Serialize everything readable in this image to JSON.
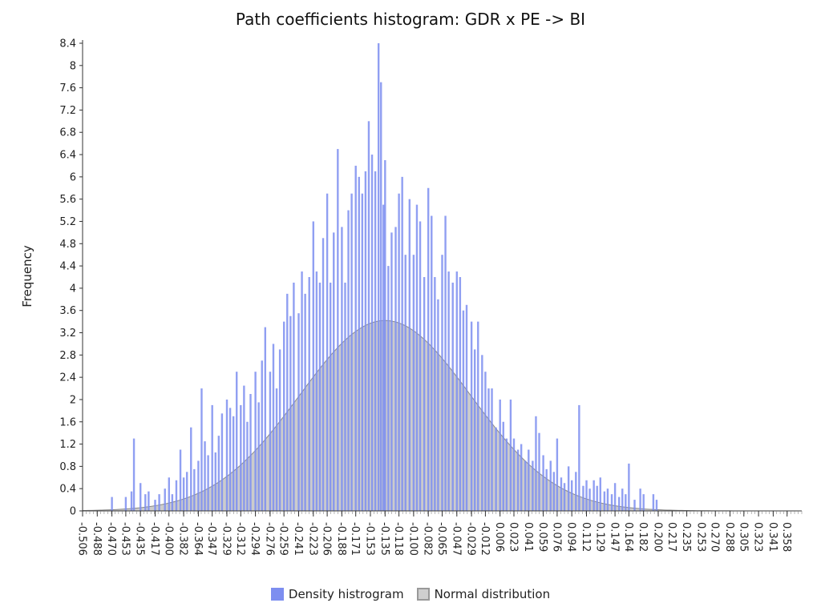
{
  "chart_data": {
    "type": "histogram",
    "title": "Path coefficients histogram: GDR x PE -> BI",
    "ylabel": "Frequency",
    "xlabel": "",
    "xlim": [
      -0.506,
      0.376
    ],
    "ylim": [
      0,
      8.4
    ],
    "y_ticks": [
      "0",
      "0.4",
      "0.8",
      "1.2",
      "1.6",
      "2",
      "2.4",
      "2.8",
      "3.2",
      "3.6",
      "4",
      "4.4",
      "4.8",
      "5.2",
      "5.6",
      "6",
      "6.4",
      "6.8",
      "7.2",
      "7.6",
      "8",
      "8.4"
    ],
    "x_ticks": [
      "-0.506",
      "-0.488",
      "-0.470",
      "-0.453",
      "-0.435",
      "-0.417",
      "-0.400",
      "-0.382",
      "-0.364",
      "-0.347",
      "-0.329",
      "-0.312",
      "-0.294",
      "-0.276",
      "-0.259",
      "-0.241",
      "-0.223",
      "-0.206",
      "-0.188",
      "-0.171",
      "-0.153",
      "-0.135",
      "-0.118",
      "-0.100",
      "-0.082",
      "-0.065",
      "-0.047",
      "-0.029",
      "-0.012",
      "0.006",
      "0.023",
      "0.041",
      "0.059",
      "0.076",
      "0.094",
      "0.112",
      "0.129",
      "0.147",
      "0.164",
      "0.182",
      "0.200",
      "0.217",
      "0.235",
      "0.253",
      "0.270",
      "0.288",
      "0.305",
      "0.323",
      "0.341",
      "0.358"
    ],
    "grid": false,
    "legend_position": "bottom",
    "series": [
      {
        "name": "Density histrogram",
        "kind": "bars",
        "color": "#7d8ef0",
        "x": [
          -0.47,
          -0.453,
          -0.446,
          -0.443,
          -0.435,
          -0.429,
          -0.425,
          -0.417,
          -0.412,
          -0.405,
          -0.4,
          -0.396,
          -0.391,
          -0.386,
          -0.382,
          -0.378,
          -0.373,
          -0.369,
          -0.364,
          -0.36,
          -0.356,
          -0.352,
          -0.347,
          -0.343,
          -0.339,
          -0.335,
          -0.329,
          -0.325,
          -0.321,
          -0.317,
          -0.312,
          -0.308,
          -0.304,
          -0.3,
          -0.294,
          -0.29,
          -0.286,
          -0.282,
          -0.276,
          -0.272,
          -0.268,
          -0.264,
          -0.259,
          -0.255,
          -0.251,
          -0.247,
          -0.241,
          -0.237,
          -0.233,
          -0.228,
          -0.223,
          -0.219,
          -0.215,
          -0.211,
          -0.206,
          -0.202,
          -0.198,
          -0.193,
          -0.188,
          -0.184,
          -0.18,
          -0.176,
          -0.171,
          -0.167,
          -0.163,
          -0.159,
          -0.155,
          -0.151,
          -0.147,
          -0.143,
          -0.14,
          -0.137,
          -0.135,
          -0.131,
          -0.127,
          -0.122,
          -0.118,
          -0.114,
          -0.11,
          -0.105,
          -0.1,
          -0.096,
          -0.092,
          -0.087,
          -0.082,
          -0.078,
          -0.074,
          -0.07,
          -0.065,
          -0.061,
          -0.057,
          -0.052,
          -0.047,
          -0.043,
          -0.039,
          -0.035,
          -0.029,
          -0.025,
          -0.021,
          -0.016,
          -0.012,
          -0.008,
          -0.004,
          0.001,
          0.006,
          0.01,
          0.014,
          0.019,
          0.023,
          0.028,
          0.032,
          0.037,
          0.041,
          0.046,
          0.05,
          0.054,
          0.059,
          0.063,
          0.068,
          0.072,
          0.076,
          0.081,
          0.085,
          0.09,
          0.094,
          0.099,
          0.103,
          0.108,
          0.112,
          0.116,
          0.121,
          0.125,
          0.129,
          0.134,
          0.138,
          0.143,
          0.147,
          0.152,
          0.156,
          0.16,
          0.164,
          0.171,
          0.178,
          0.182,
          0.194,
          0.198
        ],
        "values": [
          0.25,
          0.25,
          0.35,
          1.3,
          0.5,
          0.3,
          0.35,
          0.2,
          0.3,
          0.4,
          0.6,
          0.3,
          0.55,
          1.1,
          0.6,
          0.7,
          1.5,
          0.75,
          0.9,
          2.2,
          1.25,
          1.0,
          1.9,
          1.05,
          1.35,
          1.75,
          2.0,
          1.85,
          1.7,
          2.5,
          1.9,
          2.25,
          1.6,
          2.1,
          2.5,
          1.95,
          2.7,
          3.3,
          2.5,
          3.0,
          2.2,
          2.9,
          3.4,
          3.9,
          3.5,
          4.1,
          3.55,
          4.3,
          3.9,
          4.2,
          5.2,
          4.3,
          4.1,
          4.9,
          5.7,
          4.1,
          5.0,
          6.5,
          5.1,
          4.1,
          5.4,
          5.7,
          6.2,
          6.0,
          5.7,
          6.1,
          7.0,
          6.4,
          6.1,
          8.4,
          7.7,
          5.5,
          6.3,
          4.4,
          5.0,
          5.1,
          5.7,
          6.0,
          4.6,
          5.6,
          4.6,
          5.5,
          5.2,
          4.2,
          5.8,
          5.3,
          4.2,
          3.8,
          4.6,
          5.3,
          4.3,
          4.1,
          4.3,
          4.2,
          3.6,
          3.7,
          3.4,
          2.9,
          3.4,
          2.8,
          2.5,
          2.2,
          2.2,
          1.5,
          2.0,
          1.6,
          1.3,
          2.0,
          1.3,
          1.1,
          1.2,
          0.9,
          1.1,
          0.9,
          1.7,
          1.4,
          1.0,
          0.75,
          0.9,
          0.7,
          1.3,
          0.6,
          0.5,
          0.8,
          0.55,
          0.7,
          1.9,
          0.45,
          0.55,
          0.4,
          0.55,
          0.45,
          0.6,
          0.35,
          0.4,
          0.3,
          0.5,
          0.25,
          0.4,
          0.3,
          0.85,
          0.2,
          0.4,
          0.3,
          0.3,
          0.2
        ]
      },
      {
        "name": "Normal distribution",
        "kind": "area",
        "fill": "#c7c7c7",
        "stroke": "#8a8a8a",
        "mean": -0.135,
        "peak": 3.42,
        "sd": 0.105
      }
    ]
  }
}
